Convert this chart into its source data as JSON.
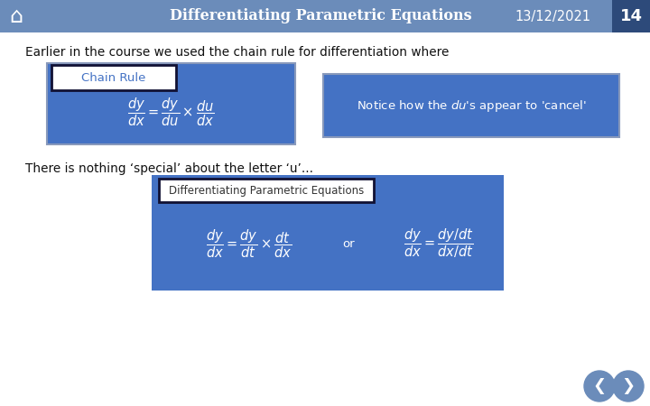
{
  "title": "Differentiating Parametric Equations",
  "date": "13/12/2021",
  "page": "14",
  "bg_color": "#ffffff",
  "header_blue": "#6b8cba",
  "blue_box": "#4472c4",
  "page_tab_dark": "#2d4a7a",
  "intro_text": "Earlier in the course we used the chain rule for differentiation where",
  "chain_rule_label": "Chain Rule",
  "middle_text": "There is nothing ‘special’ about the letter ‘u’...",
  "param_label": "Differentiating Parametric Equations"
}
